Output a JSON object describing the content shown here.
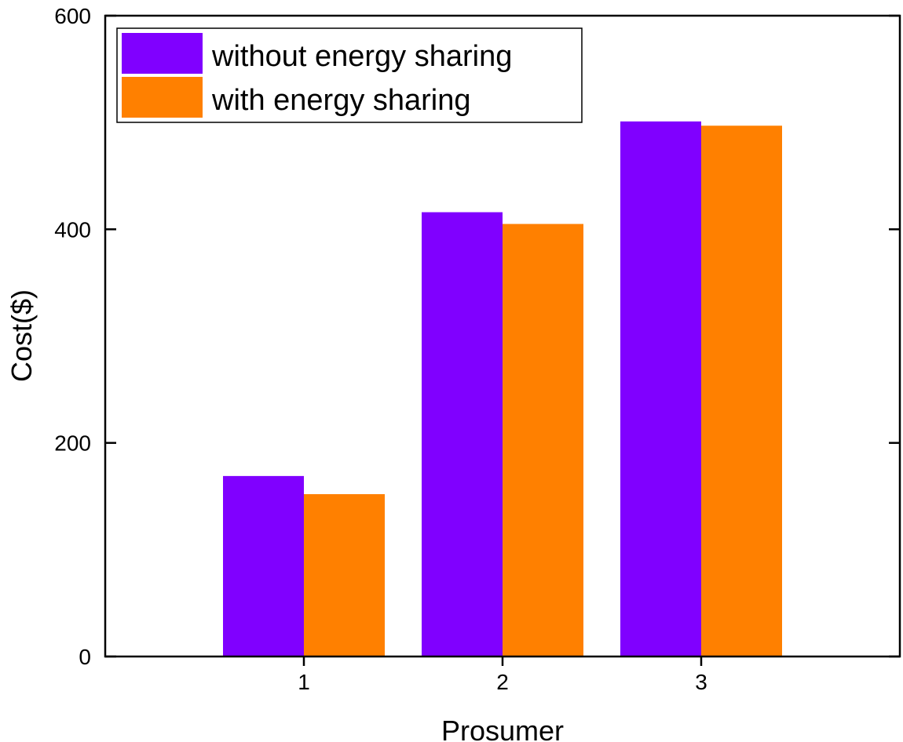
{
  "chart_data": {
    "type": "bar",
    "title": "",
    "xlabel": "Prosumer",
    "ylabel": "Cost($)",
    "categories": [
      "1",
      "2",
      "3"
    ],
    "ylim": [
      0,
      600
    ],
    "yticks": [
      "0",
      "200",
      "400",
      "600"
    ],
    "grid": false,
    "legend_position": "top-left",
    "series": [
      {
        "name": "without energy sharing",
        "color": "#8000ff",
        "values": [
          169,
          416,
          501
        ]
      },
      {
        "name": "with energy sharing",
        "color": "#ff8000",
        "values": [
          152,
          405,
          497
        ]
      }
    ]
  }
}
